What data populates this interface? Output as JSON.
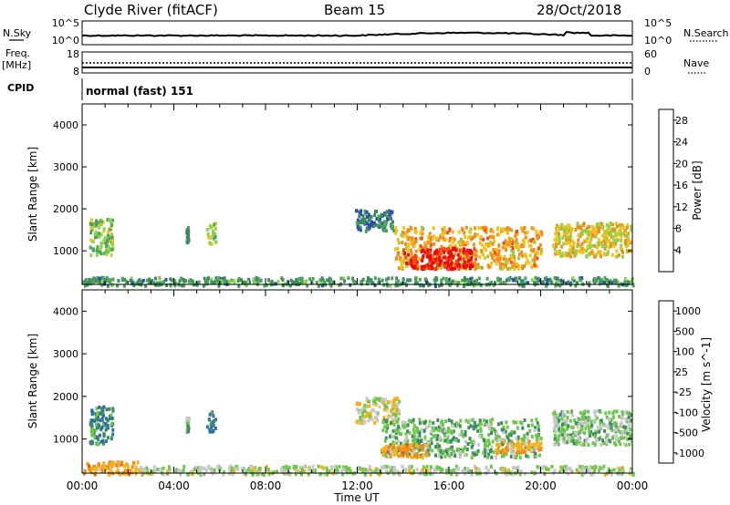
{
  "header": {
    "station": "Clyde River (fitACF)",
    "beam": "Beam 15",
    "date": "28/Oct/2018"
  },
  "noise_panel": {
    "left_label": "N.Sky",
    "right_label": "N.Search",
    "left_ticks": [
      "10^5",
      "10^0"
    ],
    "right_ticks": [
      "10^5",
      "10^0"
    ]
  },
  "freq_panel": {
    "left_label_1": "Freq.",
    "left_label_2": "[MHz]",
    "right_label": "Nave",
    "left_ticks": [
      "18",
      "8"
    ],
    "right_ticks": [
      "60",
      "0"
    ]
  },
  "cpid_panel": {
    "label": "CPID",
    "text": "normal (fast) 151"
  },
  "x_axis": {
    "label": "Time UT",
    "ticks": [
      "00:00",
      "04:00",
      "08:00",
      "12:00",
      "16:00",
      "20:00",
      "00:00"
    ]
  },
  "colors": {
    "power_scale": [
      "#1a1ae6",
      "#2e4fa8",
      "#3f8a63",
      "#4aa55a",
      "#8fd34a",
      "#f2c21a",
      "#f28c1a",
      "#f24a1a",
      "#e60d0d"
    ],
    "velocity_scale": [
      "#e60d0d",
      "#f24a1a",
      "#f28c1a",
      "#f2b21a",
      "#c8c8c8",
      "#6cc84a",
      "#3f8a63",
      "#2e6fa8",
      "#1a3fd0"
    ]
  },
  "chart_data": [
    {
      "type": "heatmap",
      "title": "",
      "xlabel": "",
      "ylabel": "Slant Range [km]",
      "y_ticks": [
        "1000",
        "2000",
        "3000",
        "4000"
      ],
      "x_range_hours": [
        0,
        24
      ],
      "ylim": [
        200,
        4500
      ],
      "colorbar": {
        "label": "Power [dB]",
        "ticks": [
          "4",
          "8",
          "12",
          "16",
          "20",
          "24",
          "28"
        ],
        "range": [
          0,
          30
        ]
      },
      "features": [
        {
          "t0": 0.3,
          "t1": 1.3,
          "r0": 900,
          "r1": 1800,
          "value": 14
        },
        {
          "t0": 4.5,
          "t1": 4.6,
          "r0": 1200,
          "r1": 1600,
          "value": 10
        },
        {
          "t0": 5.4,
          "t1": 5.8,
          "r0": 1200,
          "r1": 1700,
          "value": 14
        },
        {
          "t0": 11.9,
          "t1": 13.6,
          "r0": 1500,
          "r1": 2000,
          "value": 8
        },
        {
          "t0": 13.6,
          "t1": 20.0,
          "r0": 600,
          "r1": 1600,
          "value": 20
        },
        {
          "t0": 14.0,
          "t1": 17.0,
          "r0": 600,
          "r1": 1100,
          "value": 28
        },
        {
          "t0": 20.5,
          "t1": 23.9,
          "r0": 900,
          "r1": 1700,
          "value": 18
        },
        {
          "t0": 0.0,
          "t1": 24.0,
          "r0": 200,
          "r1": 400,
          "value": 10
        }
      ]
    },
    {
      "type": "heatmap",
      "title": "",
      "xlabel": "Time UT",
      "ylabel": "Slant Range [km]",
      "y_ticks": [
        "1000",
        "2000",
        "3000",
        "4000"
      ],
      "x_range_hours": [
        0,
        24
      ],
      "ylim": [
        200,
        4500
      ],
      "colorbar": {
        "label": "Velocity [m s^-1]",
        "ticks": [
          "1000",
          "500",
          "100",
          "25",
          "-25",
          "-100",
          "-500",
          "-1000"
        ],
        "range": [
          -1000,
          1000
        ]
      },
      "features": [
        {
          "t0": 0.3,
          "t1": 1.3,
          "r0": 900,
          "r1": 1800,
          "value": 300
        },
        {
          "t0": 4.5,
          "t1": 4.6,
          "r0": 1200,
          "r1": 1600,
          "value": 100
        },
        {
          "t0": 5.4,
          "t1": 5.8,
          "r0": 1200,
          "r1": 1700,
          "value": 300
        },
        {
          "t0": 11.9,
          "t1": 13.8,
          "r0": 1400,
          "r1": 2000,
          "value": 0
        },
        {
          "t0": 13.0,
          "t1": 20.0,
          "r0": 600,
          "r1": 1500,
          "value": 150
        },
        {
          "t0": 13.0,
          "t1": 15.0,
          "r0": 600,
          "r1": 900,
          "value": -200
        },
        {
          "t0": 18.0,
          "t1": 20.0,
          "r0": 700,
          "r1": 1000,
          "value": -150
        },
        {
          "t0": 20.5,
          "t1": 23.9,
          "r0": 900,
          "r1": 1700,
          "value": 100
        },
        {
          "t0": 0.0,
          "t1": 2.5,
          "r0": 200,
          "r1": 500,
          "value": -200
        },
        {
          "t0": 2.5,
          "t1": 24.0,
          "r0": 200,
          "r1": 400,
          "value": 50
        }
      ]
    }
  ]
}
